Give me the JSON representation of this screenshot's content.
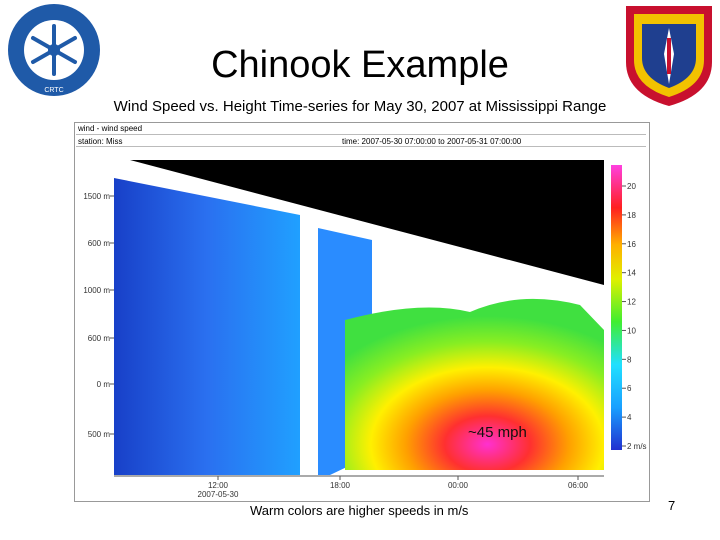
{
  "slide": {
    "title": "Chinook Example",
    "subtitle": "Wind Speed vs. Height Time-series for May 30, 2007 at Mississippi Range",
    "caption": "Warm colors are higher speeds in m/s",
    "page_number": "7",
    "annotation": "~45 mph"
  },
  "logos": {
    "left_text": "COLD REGIONS TEST CENTER",
    "left_inner": "CRTC"
  },
  "plot_header": {
    "line1": "wind - wind speed",
    "station": "station: Miss",
    "time_range": "time: 2007-05-30 07:00:00 to 2007-05-31 07:00:00"
  },
  "chart_data": {
    "type": "heatmap",
    "xlabel": "",
    "ylabel": "",
    "x_ticks": [
      "12:00",
      "18:00",
      "00:00",
      "06:00"
    ],
    "x_subticks": [
      "2007-05-30",
      "",
      "",
      ""
    ],
    "y_ticks": [
      "1500 m",
      "1000 m",
      "500 m",
      "0 m"
    ],
    "y_ticks_full": [
      "1500 m",
      "600 m",
      "1000 m",
      "600 m",
      "0 m",
      "500 m"
    ],
    "colorbar_ticks": [
      "20",
      "18",
      "16",
      "14",
      "12",
      "10",
      "8",
      "6",
      "4",
      "2 m/s"
    ],
    "colorbar_range": [
      0,
      20
    ],
    "units": "m/s"
  },
  "colors": {
    "black_region": "#000000",
    "blue": "#1a5fe0",
    "magenta": "#ff33cc",
    "red": "#ff2a2a",
    "yellow": "#ffe000",
    "green": "#55ee22"
  }
}
